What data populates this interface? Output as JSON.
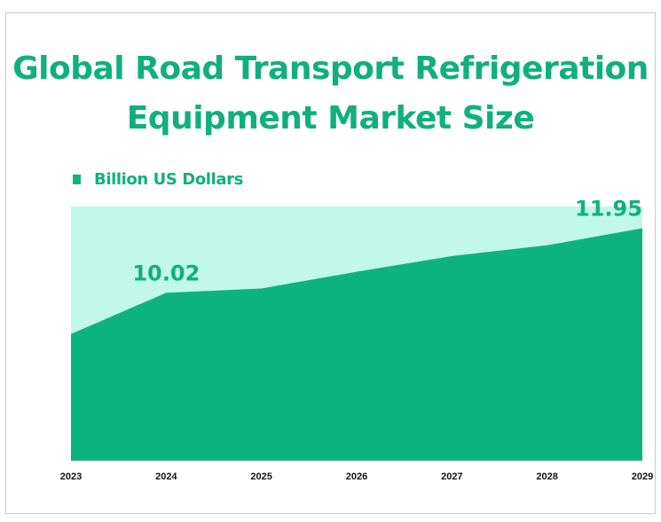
{
  "chart_data": {
    "type": "area",
    "title": "Global Road Transport Refrigeration Equipment Market Size",
    "legend": [
      "Billion US Dollars"
    ],
    "legend_position": "top-left",
    "categories": [
      "2023",
      "2024",
      "2025",
      "2026",
      "2027",
      "2028",
      "2029"
    ],
    "series": [
      {
        "name": "Billion US Dollars",
        "values": [
          8.79,
          10.02,
          10.15,
          10.65,
          11.12,
          11.44,
          11.95
        ]
      }
    ],
    "data_labels": [
      {
        "category": "2024",
        "text": "10.02"
      },
      {
        "category": "2029",
        "text": "11.95"
      }
    ],
    "ylim": [
      5,
      12.6
    ],
    "grid": false,
    "xlabel": "",
    "ylabel": "",
    "colors": {
      "fill": "#0db37e",
      "plot_bg": "#c1f8e8",
      "text": "#10b07e"
    }
  }
}
